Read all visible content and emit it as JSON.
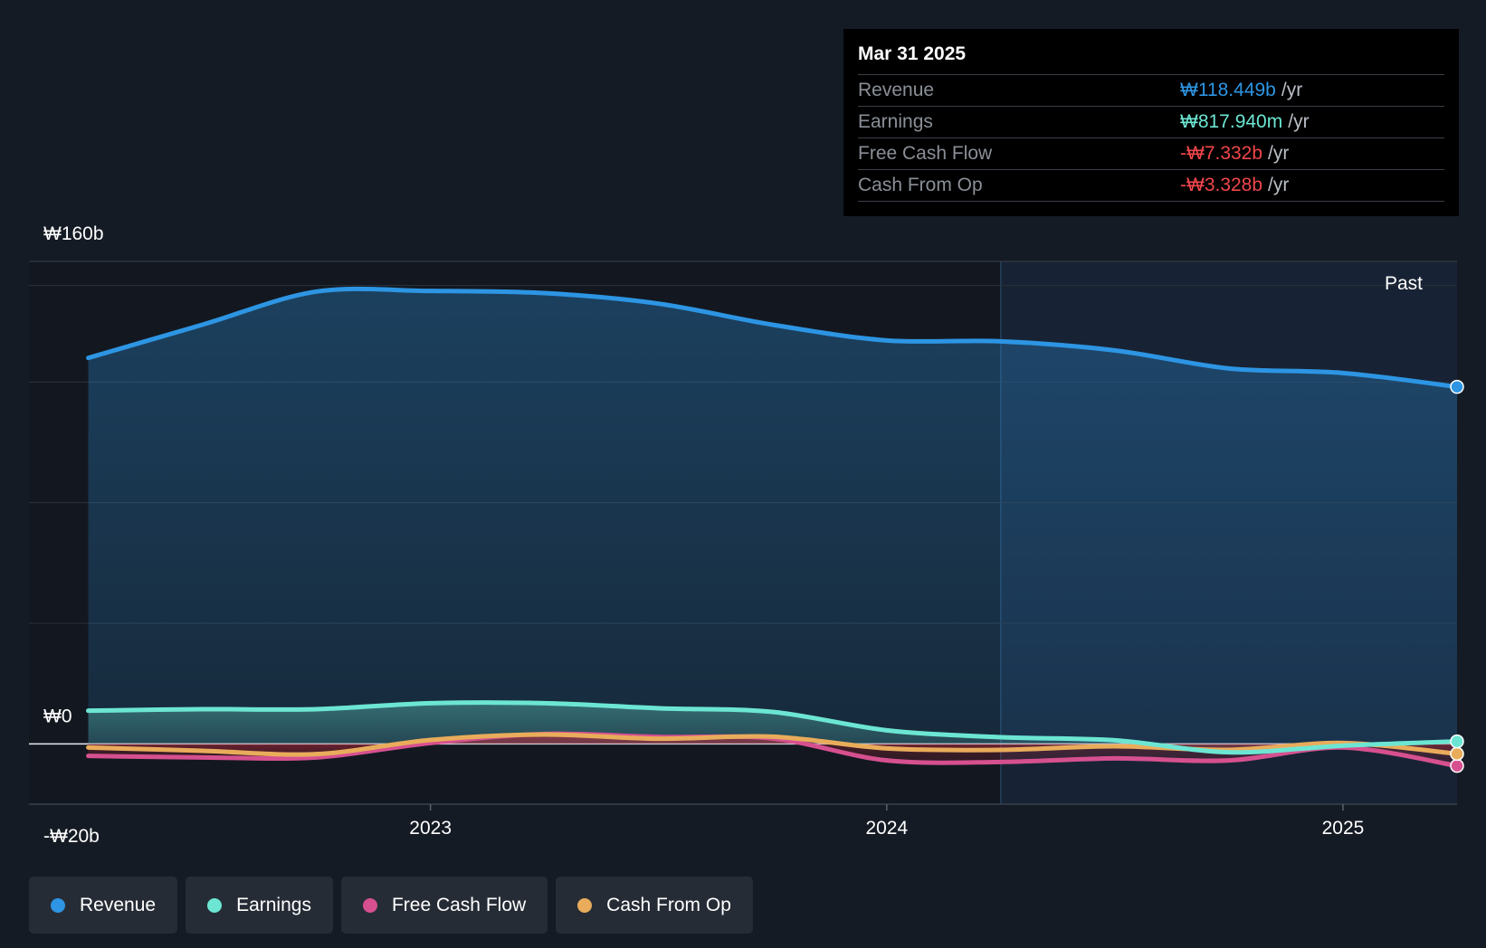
{
  "colors": {
    "revenue": "#2d95e3",
    "earnings": "#6ce6d3",
    "free_cash_flow": "#d6508f",
    "cash_from_op": "#e9ac5b",
    "negative": "#f0464b"
  },
  "tooltip": {
    "date": "Mar 31 2025",
    "rows": [
      {
        "label": "Revenue",
        "value": "₩118.449b",
        "unit": "/yr"
      },
      {
        "label": "Earnings",
        "value": "₩817.940m",
        "unit": "/yr"
      },
      {
        "label": "Free Cash Flow",
        "value": "-₩7.332b",
        "unit": "/yr"
      },
      {
        "label": "Cash From Op",
        "value": "-₩3.328b",
        "unit": "/yr"
      }
    ]
  },
  "legend": [
    {
      "label": "Revenue",
      "color": "#2d95e3"
    },
    {
      "label": "Earnings",
      "color": "#6ce6d3"
    },
    {
      "label": "Free Cash Flow",
      "color": "#d6508f"
    },
    {
      "label": "Cash From Op",
      "color": "#e9ac5b"
    }
  ],
  "chart_data": {
    "type": "area",
    "title": "",
    "xlabel": "",
    "ylabel": "",
    "y_tick_labels": [
      "₩160b",
      "₩0",
      "-₩20b"
    ],
    "ylim": [
      -20,
      160
    ],
    "x_tick_labels": [
      "2023",
      "2024",
      "2025"
    ],
    "x_ticks": [
      2023.0,
      2024.0,
      2025.0
    ],
    "xlim": [
      2022.12,
      2025.25
    ],
    "past_label": "Past",
    "past_start": 2024.25,
    "series": [
      {
        "name": "Revenue",
        "x": [
          2022.25,
          2022.5,
          2022.75,
          2023.0,
          2023.25,
          2023.5,
          2023.75,
          2024.0,
          2024.25,
          2024.5,
          2024.75,
          2025.0,
          2025.25
        ],
        "values": [
          128,
          139,
          150,
          150.2,
          149.5,
          146,
          139,
          133.8,
          133.5,
          130.5,
          124.5,
          123,
          118.4
        ]
      },
      {
        "name": "Earnings",
        "x": [
          2022.25,
          2022.5,
          2022.75,
          2023.0,
          2023.25,
          2023.5,
          2023.75,
          2024.0,
          2024.25,
          2024.5,
          2024.75,
          2025.0,
          2025.25
        ],
        "values": [
          11,
          11.5,
          11.5,
          13.5,
          13.5,
          11.8,
          10.6,
          4.5,
          2.2,
          1.2,
          -2.8,
          -0.6,
          0.8
        ]
      },
      {
        "name": "Free Cash Flow",
        "x": [
          2022.25,
          2022.5,
          2022.75,
          2023.0,
          2023.25,
          2023.5,
          2023.75,
          2024.0,
          2024.25,
          2024.5,
          2024.75,
          2025.0,
          2025.25
        ],
        "values": [
          -4,
          -4.5,
          -4.5,
          0.3,
          3.3,
          2.3,
          1.8,
          -5.5,
          -6,
          -4.8,
          -5.5,
          -1.2,
          -7.3
        ]
      },
      {
        "name": "Cash From Op",
        "x": [
          2022.25,
          2022.5,
          2022.75,
          2023.0,
          2023.25,
          2023.5,
          2023.75,
          2024.0,
          2024.25,
          2024.5,
          2024.75,
          2025.0,
          2025.25
        ],
        "values": [
          -1.2,
          -2.3,
          -3.4,
          1.3,
          3.1,
          1.7,
          2.4,
          -1.5,
          -2,
          -0.8,
          -2,
          0.3,
          -3.3
        ]
      }
    ]
  }
}
